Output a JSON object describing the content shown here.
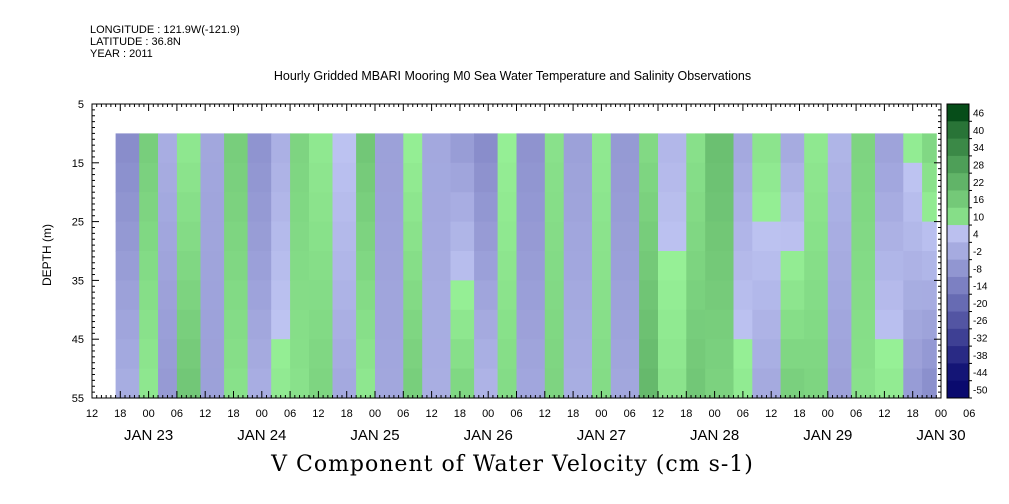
{
  "header": {
    "longitude": "LONGITUDE : 121.9W(-121.9)",
    "latitude": "LATITUDE : 36.8N",
    "year": "YEAR : 2011"
  },
  "chart_data": {
    "type": "heatmap",
    "title": "Hourly Gridded MBARI Mooring M0 Sea Water Temperature and Salinity Observations",
    "xlabel": "V Component of Water Velocity (cm s-1)",
    "ylabel": "DEPTH (m)",
    "y_axis": {
      "ticks": [
        5,
        15,
        25,
        35,
        45,
        55
      ],
      "range": [
        5,
        55
      ],
      "inverted": true
    },
    "x_axis": {
      "hour_ticks": [
        "12",
        "18",
        "00",
        "06",
        "12",
        "18",
        "00",
        "06",
        "12",
        "18",
        "00",
        "06",
        "12",
        "18",
        "00",
        "06",
        "12",
        "18",
        "00",
        "06",
        "12",
        "18",
        "00",
        "06",
        "12",
        "18",
        "00",
        "06",
        "12",
        "18",
        "00",
        "06"
      ],
      "date_labels": [
        "JAN 23",
        "JAN 24",
        "JAN 25",
        "JAN 26",
        "JAN 27",
        "JAN 28",
        "JAN 29",
        "JAN 30"
      ],
      "range_hours": [
        12,
        192
      ]
    },
    "data_extent": {
      "hours": [
        17,
        191
      ],
      "depth_m": [
        10,
        55
      ]
    },
    "colorbar": {
      "levels": [
        46,
        40,
        34,
        28,
        22,
        16,
        10,
        4,
        -2,
        -8,
        -14,
        -20,
        -26,
        -32,
        -38,
        -44,
        -50
      ],
      "min": -50,
      "max": 50
    },
    "bands": [
      {
        "t0": 17,
        "t1": 22,
        "v_top": -14,
        "v_bottom": -4
      },
      {
        "t0": 22,
        "t1": 26,
        "v_top": 12,
        "v_bottom": 4
      },
      {
        "t0": 26,
        "t1": 30,
        "v_top": -4,
        "v_bottom": -10
      },
      {
        "t0": 30,
        "t1": 35,
        "v_top": 4,
        "v_bottom": 14
      },
      {
        "t0": 35,
        "t1": 40,
        "v_top": -6,
        "v_bottom": -8
      },
      {
        "t0": 40,
        "t1": 45,
        "v_top": 12,
        "v_bottom": 6
      },
      {
        "t0": 45,
        "t1": 50,
        "v_top": -12,
        "v_bottom": -4
      },
      {
        "t0": 50,
        "t1": 54,
        "v_top": -4,
        "v_bottom": 4
      },
      {
        "t0": 54,
        "t1": 58,
        "v_top": 10,
        "v_bottom": 6
      },
      {
        "t0": 58,
        "t1": 63,
        "v_top": 4,
        "v_bottom": 10
      },
      {
        "t0": 63,
        "t1": 68,
        "v_top": 2,
        "v_bottom": -6
      },
      {
        "t0": 68,
        "t1": 72,
        "v_top": 14,
        "v_bottom": 4
      },
      {
        "t0": 72,
        "t1": 78,
        "v_top": -8,
        "v_bottom": -6
      },
      {
        "t0": 78,
        "t1": 82,
        "v_top": 2,
        "v_bottom": 12
      },
      {
        "t0": 82,
        "t1": 88,
        "v_top": -6,
        "v_bottom": -4
      },
      {
        "t0": 88,
        "t1": 93,
        "v_top": -10,
        "v_bottom": 10
      },
      {
        "t0": 93,
        "t1": 98,
        "v_top": -14,
        "v_bottom": -2
      },
      {
        "t0": 98,
        "t1": 102,
        "v_top": 2,
        "v_bottom": 8
      },
      {
        "t0": 102,
        "t1": 108,
        "v_top": -12,
        "v_bottom": -6
      },
      {
        "t0": 108,
        "t1": 112,
        "v_top": 6,
        "v_bottom": 10
      },
      {
        "t0": 112,
        "t1": 118,
        "v_top": -8,
        "v_bottom": -4
      },
      {
        "t0": 118,
        "t1": 122,
        "v_top": 4,
        "v_bottom": 8
      },
      {
        "t0": 122,
        "t1": 128,
        "v_top": -10,
        "v_bottom": -6
      },
      {
        "t0": 128,
        "t1": 132,
        "v_top": 8,
        "v_bottom": 18
      },
      {
        "t0": 132,
        "t1": 138,
        "v_top": -2,
        "v_bottom": 6
      },
      {
        "t0": 138,
        "t1": 142,
        "v_top": 6,
        "v_bottom": 14
      },
      {
        "t0": 142,
        "t1": 148,
        "v_top": 16,
        "v_bottom": 10
      },
      {
        "t0": 148,
        "t1": 152,
        "v_top": -6,
        "v_bottom": 4
      },
      {
        "t0": 152,
        "t1": 158,
        "v_top": 6,
        "v_bottom": -6
      },
      {
        "t0": 158,
        "t1": 163,
        "v_top": -6,
        "v_bottom": 12
      },
      {
        "t0": 163,
        "t1": 168,
        "v_top": 4,
        "v_bottom": 10
      },
      {
        "t0": 168,
        "t1": 173,
        "v_top": -2,
        "v_bottom": -8
      },
      {
        "t0": 173,
        "t1": 178,
        "v_top": 10,
        "v_bottom": 6
      },
      {
        "t0": 178,
        "t1": 184,
        "v_top": -8,
        "v_bottom": 4
      },
      {
        "t0": 184,
        "t1": 188,
        "v_top": 4,
        "v_bottom": -10
      },
      {
        "t0": 188,
        "t1": 191,
        "v_top": 10,
        "v_bottom": -14
      }
    ]
  }
}
